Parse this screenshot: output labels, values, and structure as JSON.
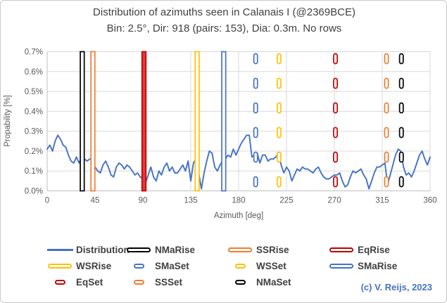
{
  "title": {
    "line1": "Distribution of azimuths seen in Calanais I (@2369BCE)",
    "line2": "Bin: 2.5°, Dir: 918 (pairs: 153), Dia: 0.3m. No rows"
  },
  "copyright": "(c) V. Reijs, 2023",
  "colors": {
    "distribution": "#4472C4",
    "black_events": "#000000",
    "orange_events": "#ED7D31",
    "red_events": "#C00000",
    "red_fill": "#E03C3C",
    "yellow_events": "#FFC000",
    "blue_events": "#4472C4",
    "gridline": "#D9D9D9",
    "axis_line": "#BFBFBF",
    "tick_text": "#595959",
    "title_text": "#404040"
  },
  "chart_data": {
    "type": "line",
    "title": "Distribution of azimuths seen in Calanais I (@2369BCE)",
    "subtitle": "Bin: 2.5°, Dir: 918 (pairs: 153), Dia: 0.3m. No rows",
    "xlabel": "Azimuth [deg]",
    "ylabel": "Propability [%]",
    "xlim": [
      0,
      360
    ],
    "ylim": [
      0,
      0.7
    ],
    "x_ticks": [
      0,
      45,
      90,
      135,
      180,
      225,
      270,
      315,
      360
    ],
    "y_ticks": [
      0.0,
      0.1,
      0.2,
      0.3,
      0.4,
      0.5,
      0.6,
      0.7
    ],
    "y_tick_suffix": "%",
    "grid": true,
    "bin_deg": 2.5,
    "series": [
      {
        "name": "Distribution",
        "color": "#4472C4",
        "x_start": 0,
        "x_step": 2.5,
        "values_percent": [
          0.21,
          0.23,
          0.2,
          0.25,
          0.28,
          0.26,
          0.23,
          0.22,
          0.18,
          0.15,
          0.14,
          0.17,
          0.14,
          0.17,
          0.16,
          0.15,
          0.16,
          0.16,
          0.12,
          0.1,
          0.09,
          0.13,
          0.15,
          0.12,
          0.08,
          0.07,
          0.12,
          0.14,
          0.13,
          0.11,
          0.13,
          0.12,
          0.1,
          0.08,
          0.09,
          0.07,
          0.06,
          0.04,
          0.08,
          0.12,
          0.07,
          0.05,
          0.1,
          0.08,
          0.12,
          0.14,
          0.1,
          0.12,
          0.09,
          0.09,
          0.11,
          0.13,
          0.1,
          0.15,
          0.05,
          0.14,
          0.16,
          0.09,
          0.01,
          0.09,
          0.15,
          0.2,
          0.19,
          0.12,
          0.1,
          0.13,
          0.15,
          0.16,
          0.18,
          0.17,
          0.21,
          0.18,
          0.21,
          0.24,
          0.26,
          0.28,
          0.28,
          0.17,
          0.18,
          0.19,
          0.14,
          0.18,
          0.18,
          0.15,
          0.16,
          0.16,
          0.17,
          0.19,
          0.13,
          0.09,
          0.12,
          0.1,
          0.05,
          0.08,
          0.11,
          0.1,
          0.12,
          0.11,
          0.11,
          0.1,
          0.09,
          0.11,
          0.12,
          0.09,
          0.07,
          0.06,
          0.06,
          0.07,
          0.08,
          0.08,
          0.09,
          0.05,
          0.02,
          0.03,
          0.07,
          0.1,
          0.09,
          0.1,
          0.11,
          0.08,
          0.06,
          0.01,
          0.05,
          0.09,
          0.12,
          0.12,
          0.13,
          0.14,
          0.03,
          0.08,
          0.13,
          0.18,
          0.21,
          0.2,
          0.12,
          0.08,
          0.09,
          0.07,
          0.1,
          0.14,
          0.18,
          0.2,
          0.16,
          0.13,
          0.17
        ]
      }
    ],
    "event_lines": [
      {
        "label": "NMaRise",
        "azimuth": 33,
        "color": "#000000",
        "style": "solid"
      },
      {
        "label": "SSRise",
        "azimuth": 43,
        "color": "#ED7D31",
        "style": "solid"
      },
      {
        "label": "EqRise",
        "azimuth": 91,
        "color": "#C00000",
        "style": "solid",
        "fill": "#E03C3C"
      },
      {
        "label": "WSRise",
        "azimuth": 141,
        "color": "#FFC000",
        "style": "solid"
      },
      {
        "label": "SMaRise",
        "azimuth": 166,
        "color": "#4472C4",
        "style": "solid"
      },
      {
        "label": "SMaSet",
        "azimuth": 196,
        "color": "#4472C4",
        "style": "dashed"
      },
      {
        "label": "WSSet",
        "azimuth": 218,
        "color": "#FFC000",
        "style": "dashed"
      },
      {
        "label": "EqSet",
        "azimuth": 271,
        "color": "#C00000",
        "style": "dashed"
      },
      {
        "label": "SSSet",
        "azimuth": 319,
        "color": "#ED7D31",
        "style": "dashed"
      },
      {
        "label": "NMaSet",
        "azimuth": 333,
        "color": "#000000",
        "style": "dashed"
      }
    ],
    "legend_position": "bottom"
  },
  "legend": {
    "items": [
      {
        "label": "Distribution",
        "marker": "line",
        "color": "#4472C4"
      },
      {
        "label": "NMaRise",
        "marker": "capsule-long",
        "color": "#000000"
      },
      {
        "label": "SSRise",
        "marker": "capsule-long",
        "color": "#ED7D31"
      },
      {
        "label": "EqRise",
        "marker": "capsule-long",
        "color": "#C00000"
      },
      {
        "label": "WSRise",
        "marker": "capsule-long",
        "color": "#FFC000"
      },
      {
        "label": "SMaSet",
        "marker": "capsule-short",
        "color": "#4472C4"
      },
      {
        "label": "WSSet",
        "marker": "capsule-short",
        "color": "#FFC000"
      },
      {
        "label": "SMaRise",
        "marker": "capsule-long",
        "color": "#4472C4"
      },
      {
        "label": "EqSet",
        "marker": "capsule-short",
        "color": "#C00000"
      },
      {
        "label": "SSSet",
        "marker": "capsule-short",
        "color": "#ED7D31"
      },
      {
        "label": "NMaSet",
        "marker": "capsule-short",
        "color": "#000000"
      }
    ]
  }
}
